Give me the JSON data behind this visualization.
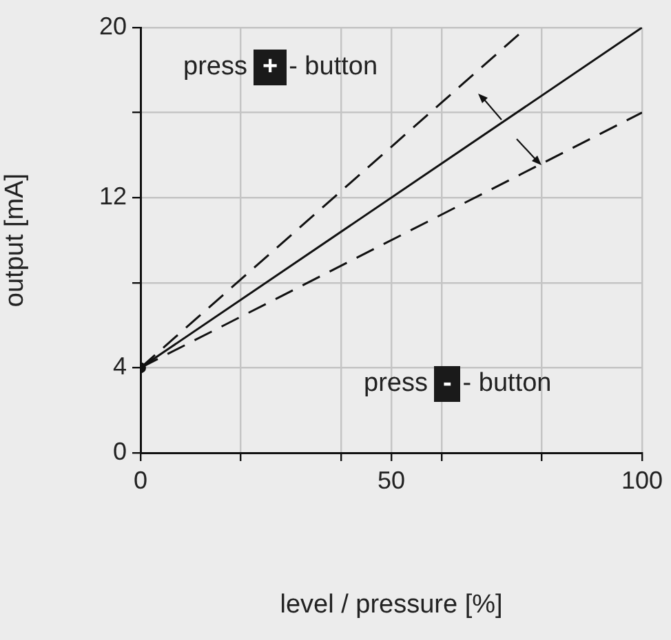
{
  "chart_data": {
    "type": "line",
    "xlabel": "level / pressure [%]",
    "ylabel": "output [mA]",
    "series": [
      {
        "color": "#111111",
        "x": [
          0,
          100
        ],
        "values": [
          4,
          20
        ],
        "line_style": "solid",
        "marker": "none"
      },
      {
        "color": "#111111",
        "x": [
          0,
          77
        ],
        "values": [
          4,
          20
        ],
        "line_style": "dashed",
        "marker": "none"
      },
      {
        "color": "#111111",
        "x": [
          0,
          100
        ],
        "values": [
          4,
          16
        ],
        "line_style": "dashed",
        "marker": "none"
      },
      {
        "type": "scatter",
        "color": "#111111",
        "x": [
          0
        ],
        "values": [
          4
        ],
        "marker": "circle"
      }
    ],
    "xlim": [
      0,
      100
    ],
    "xticks": [
      0,
      {
        "value": 20,
        "label": null
      },
      {
        "value": 40,
        "label": null
      },
      50,
      {
        "value": 60,
        "label": null
      },
      {
        "value": 80,
        "label": null
      },
      100
    ],
    "ylim": [
      0,
      20
    ],
    "yticks": [
      0,
      4,
      {
        "value": 8,
        "label": null
      },
      12,
      {
        "value": 16,
        "label": null
      },
      20
    ],
    "grid": true,
    "legend": false,
    "annotations": [
      "press + - button",
      "press - - button"
    ]
  }
}
